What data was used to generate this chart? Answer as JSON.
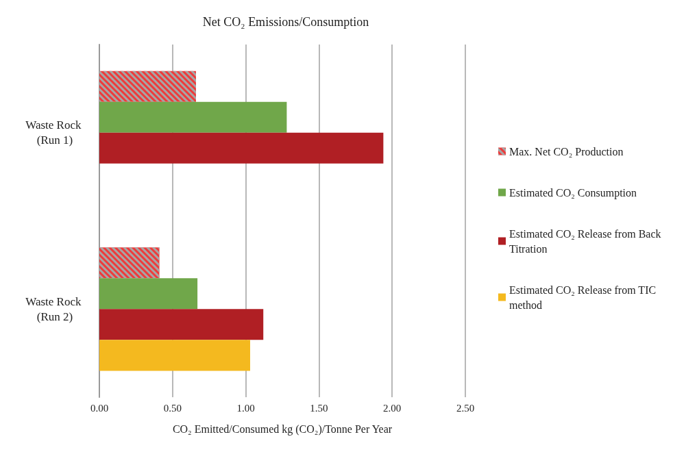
{
  "chart_data": {
    "type": "bar",
    "orientation": "horizontal",
    "title": "Net CO₂ Emissions/Consumption",
    "xlabel": "CO₂ Emitted/Consumed kg (CO₂)/Tonne Per Year",
    "categories": [
      "Waste Rock (Run 1)",
      "Waste Rock (Run 2)"
    ],
    "series": [
      {
        "name": "Max. Net CO₂ Production",
        "color": "#ee3b3b",
        "values": [
          0.66,
          0.41
        ]
      },
      {
        "name": "Estimated CO₂ Consumption",
        "color": "#70a74a",
        "values": [
          1.28,
          0.67
        ]
      },
      {
        "name": "Estimated CO₂ Release from Back Titration",
        "color": "#b01f24",
        "values": [
          1.94,
          1.12
        ]
      },
      {
        "name": "Estimated CO₂ Release from TIC method",
        "color": "#f4b91f",
        "values": [
          null,
          1.03
        ]
      }
    ],
    "xlim": [
      0,
      2.5
    ],
    "xticks": [
      {
        "value": 0,
        "label": "0.00"
      },
      {
        "value": 0.5,
        "label": "0.50"
      },
      {
        "value": 1,
        "label": "1.00"
      },
      {
        "value": 1.5,
        "label": "1.50"
      },
      {
        "value": 2,
        "label": "2.00"
      },
      {
        "value": 2.5,
        "label": "2.50"
      }
    ],
    "grid": "x",
    "legend": "right"
  }
}
